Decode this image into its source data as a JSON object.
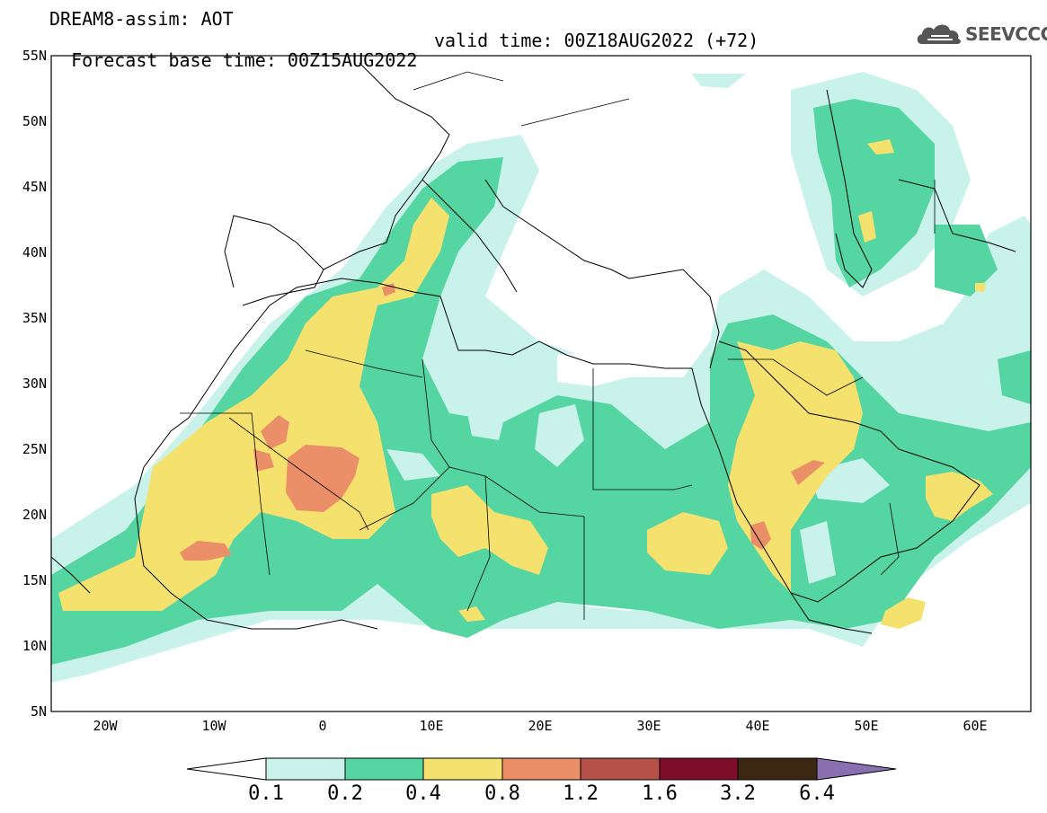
{
  "header": {
    "title": "DREAM8-assim: AOT",
    "base_time": "Forecast base time: 00Z15AUG2022",
    "valid_time": "valid time: 00Z18AUG2022 (+72)"
  },
  "logo": {
    "text": "SEEVCCC",
    "icon": "cloud-icon"
  },
  "map": {
    "lat_labels": [
      "55N",
      "50N",
      "45N",
      "40N",
      "35N",
      "30N",
      "25N",
      "20N",
      "15N",
      "10N",
      "5N"
    ],
    "lon_labels": [
      "20W",
      "10W",
      "0",
      "10E",
      "20E",
      "30E",
      "40E",
      "50E",
      "60E"
    ],
    "lat_range": [
      5,
      55
    ],
    "lon_range": [
      -25,
      65
    ]
  },
  "colorbar": {
    "labels": [
      "0.1",
      "0.2",
      "0.4",
      "0.8",
      "1.2",
      "1.6",
      "3.2",
      "6.4"
    ],
    "colors": [
      "#ffffff",
      "#c8f2ea",
      "#55d5a2",
      "#f5e16e",
      "#ea8f68",
      "#b55148",
      "#7e0d2a",
      "#3c2813",
      "#8a70b0"
    ]
  }
}
